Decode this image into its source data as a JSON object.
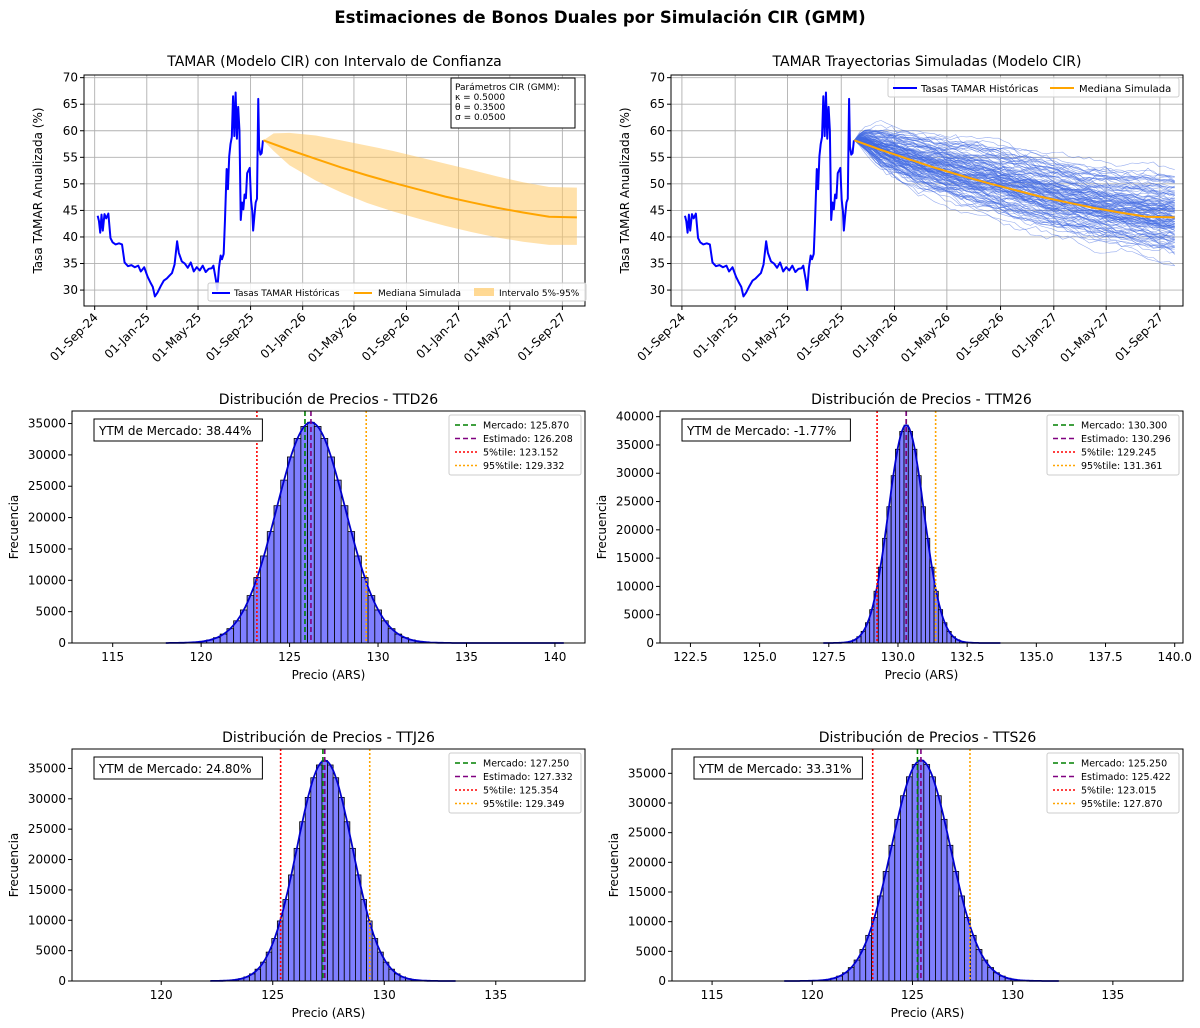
{
  "figure": {
    "suptitle": "Estimaciones de Bonos Duales por Simulación CIR (GMM)"
  },
  "colors": {
    "historical": "#0000ff",
    "median": "#ffa500",
    "band": "#ffc966",
    "paths": "#4169e1",
    "hist_fill": "#7f7fff",
    "mercado": "#008000",
    "estimado": "#800080",
    "p5": "#ff0000",
    "p95": "#ffa500",
    "grid": "#b0b0b0"
  },
  "chart_data": [
    {
      "id": "tamar-ci",
      "type": "line",
      "title": "TAMAR (Modelo CIR) con Intervalo de Confianza",
      "ylabel": "Tasa TAMAR Anualizada (%)",
      "xlabel": "",
      "ylim": [
        27,
        70.5
      ],
      "xlim": [
        "2024-08-07",
        "2027-10-24"
      ],
      "yticks": [
        30,
        35,
        40,
        45,
        50,
        55,
        60,
        65,
        70
      ],
      "xticks": [
        "01-Sep-24",
        "01-Jan-25",
        "01-May-25",
        "01-Sep-25",
        "01-Jan-26",
        "01-May-26",
        "01-Sep-26",
        "01-Jan-27",
        "01-May-27",
        "01-Sep-27"
      ],
      "xtick_dates": [
        "2024-09-01",
        "2025-01-01",
        "2025-05-01",
        "2025-09-01",
        "2026-01-01",
        "2026-05-01",
        "2026-09-01",
        "2027-01-01",
        "2027-05-01",
        "2027-09-01"
      ],
      "grid": true,
      "legend": {
        "position": "lower-right",
        "entries": [
          "Tasas TAMAR Históricas",
          "Mediana Simulada",
          "Intervalo 5%-95%"
        ]
      },
      "annotation": {
        "position": "top-right",
        "lines": [
          "Parámetros CIR (GMM):",
          "κ = 0.5000",
          "θ = 0.3500",
          "σ = 0.0500"
        ]
      },
      "historical": [
        [
          "2024-09-08",
          44
        ],
        [
          "2024-09-11",
          43
        ],
        [
          "2024-09-14",
          40.8
        ],
        [
          "2024-09-17",
          44.2
        ],
        [
          "2024-09-20",
          41.2
        ],
        [
          "2024-09-24",
          44.3
        ],
        [
          "2024-09-28",
          43.5
        ],
        [
          "2024-10-03",
          44.4
        ],
        [
          "2024-10-08",
          39.8
        ],
        [
          "2024-10-13",
          39
        ],
        [
          "2024-10-20",
          38.6
        ],
        [
          "2024-10-28",
          38.8
        ],
        [
          "2024-11-04",
          38.6
        ],
        [
          "2024-11-10",
          35.2
        ],
        [
          "2024-11-18",
          34.5
        ],
        [
          "2024-11-26",
          34.7
        ],
        [
          "2024-12-04",
          34.3
        ],
        [
          "2024-12-12",
          34.6
        ],
        [
          "2024-12-18",
          33.5
        ],
        [
          "2024-12-26",
          34.3
        ],
        [
          "2025-01-03",
          32.5
        ],
        [
          "2025-01-09",
          31.5
        ],
        [
          "2025-01-15",
          30.6
        ],
        [
          "2025-01-20",
          28.8
        ],
        [
          "2025-01-26",
          29.5
        ],
        [
          "2025-02-03",
          30.8
        ],
        [
          "2025-02-10",
          31.8
        ],
        [
          "2025-02-17",
          32.2
        ],
        [
          "2025-02-23",
          32.7
        ],
        [
          "2025-03-01",
          33.2
        ],
        [
          "2025-03-07",
          34.8
        ],
        [
          "2025-03-13",
          39.2
        ],
        [
          "2025-03-17",
          37
        ],
        [
          "2025-03-24",
          35.4
        ],
        [
          "2025-03-31",
          35
        ],
        [
          "2025-04-07",
          34.2
        ],
        [
          "2025-04-14",
          35.2
        ],
        [
          "2025-04-21",
          33.5
        ],
        [
          "2025-04-28",
          34.3
        ],
        [
          "2025-05-05",
          33.7
        ],
        [
          "2025-05-12",
          34.6
        ],
        [
          "2025-05-19",
          33.4
        ],
        [
          "2025-05-26",
          34
        ],
        [
          "2025-06-02",
          34.1
        ],
        [
          "2025-06-06",
          34.6
        ],
        [
          "2025-06-12",
          31.8
        ],
        [
          "2025-06-15",
          30
        ],
        [
          "2025-06-19",
          34.2
        ],
        [
          "2025-06-23",
          36.5
        ],
        [
          "2025-06-26",
          35.8
        ],
        [
          "2025-06-30",
          36.8
        ],
        [
          "2025-07-03",
          43
        ],
        [
          "2025-07-07",
          52.8
        ],
        [
          "2025-07-10",
          49
        ],
        [
          "2025-07-13",
          55.2
        ],
        [
          "2025-07-16",
          57.5
        ],
        [
          "2025-07-19",
          58.8
        ],
        [
          "2025-07-22",
          66.5
        ],
        [
          "2025-07-25",
          59
        ],
        [
          "2025-07-28",
          67.2
        ],
        [
          "2025-07-31",
          58.5
        ],
        [
          "2025-08-03",
          64.5
        ],
        [
          "2025-08-06",
          60
        ],
        [
          "2025-08-09",
          43.2
        ],
        [
          "2025-08-12",
          46.5
        ],
        [
          "2025-08-15",
          45.2
        ],
        [
          "2025-08-18",
          48
        ],
        [
          "2025-08-21",
          47.3
        ],
        [
          "2025-08-24",
          52
        ],
        [
          "2025-08-27",
          52.5
        ],
        [
          "2025-08-30",
          53
        ],
        [
          "2025-09-02",
          47
        ],
        [
          "2025-09-05",
          44.8
        ],
        [
          "2025-09-07",
          41.2
        ],
        [
          "2025-09-10",
          44
        ],
        [
          "2025-09-13",
          46.5
        ],
        [
          "2025-09-16",
          47.2
        ],
        [
          "2025-09-19",
          66
        ],
        [
          "2025-09-21",
          57
        ],
        [
          "2025-09-24",
          55.5
        ],
        [
          "2025-09-27",
          55.8
        ],
        [
          "2025-09-30",
          58.2
        ]
      ],
      "median": [
        [
          "2025-10-01",
          58.2
        ],
        [
          "2025-12-01",
          56.4
        ],
        [
          "2026-02-01",
          54.7
        ],
        [
          "2026-04-01",
          53.1
        ],
        [
          "2026-06-01",
          51.6
        ],
        [
          "2026-08-01",
          50.2
        ],
        [
          "2026-10-01",
          48.9
        ],
        [
          "2026-12-01",
          47.6
        ],
        [
          "2027-02-01",
          46.5
        ],
        [
          "2027-04-01",
          45.5
        ],
        [
          "2027-06-01",
          44.6
        ],
        [
          "2027-08-01",
          43.8
        ],
        [
          "2027-10-05",
          43.7
        ]
      ],
      "band_upper": [
        [
          "2025-10-01",
          58.2
        ],
        [
          "2025-10-25",
          59.5
        ],
        [
          "2025-12-01",
          59.6
        ],
        [
          "2026-02-01",
          59.1
        ],
        [
          "2026-04-01",
          58.2
        ],
        [
          "2026-06-01",
          57.2
        ],
        [
          "2026-08-01",
          56.2
        ],
        [
          "2026-10-01",
          55
        ],
        [
          "2026-12-01",
          53.8
        ],
        [
          "2027-02-01",
          52.6
        ],
        [
          "2027-04-01",
          51.4
        ],
        [
          "2027-06-01",
          50.3
        ],
        [
          "2027-08-01",
          49.4
        ],
        [
          "2027-10-05",
          49.3
        ]
      ],
      "band_lower": [
        [
          "2025-10-01",
          58.2
        ],
        [
          "2025-10-25",
          56.2
        ],
        [
          "2025-12-01",
          53.5
        ],
        [
          "2026-02-01",
          50.6
        ],
        [
          "2026-04-01",
          48.4
        ],
        [
          "2026-06-01",
          46.4
        ],
        [
          "2026-08-01",
          44.8
        ],
        [
          "2026-10-01",
          43.4
        ],
        [
          "2026-12-01",
          42.1
        ],
        [
          "2027-02-01",
          40.9
        ],
        [
          "2027-04-01",
          39.9
        ],
        [
          "2027-06-01",
          39.1
        ],
        [
          "2027-08-01",
          38.5
        ],
        [
          "2027-10-05",
          38.5
        ]
      ]
    },
    {
      "id": "tamar-paths",
      "type": "line",
      "title": "TAMAR Trayectorias Simuladas (Modelo CIR)",
      "ylabel": "Tasa TAMAR Anualizada (%)",
      "xlabel": "",
      "ylim": [
        27,
        70.5
      ],
      "xlim": [
        "2024-08-07",
        "2027-10-24"
      ],
      "yticks": [
        30,
        35,
        40,
        45,
        50,
        55,
        60,
        65,
        70
      ],
      "xticks": [
        "01-Sep-24",
        "01-Jan-25",
        "01-May-25",
        "01-Sep-25",
        "01-Jan-26",
        "01-May-26",
        "01-Sep-26",
        "01-Jan-27",
        "01-May-27",
        "01-Sep-27"
      ],
      "xtick_dates": [
        "2024-09-01",
        "2025-01-01",
        "2025-05-01",
        "2025-09-01",
        "2026-01-01",
        "2026-05-01",
        "2026-09-01",
        "2027-01-01",
        "2027-05-01",
        "2027-09-01"
      ],
      "grid": true,
      "legend": {
        "position": "top-right",
        "entries": [
          "Tasas TAMAR Históricas",
          "Mediana Simulada"
        ]
      },
      "paths_envelope": {
        "upper": [
          [
            "2025-10-01",
            58.2
          ],
          [
            "2025-10-20",
            60.6
          ],
          [
            "2025-12-01",
            61.2
          ],
          [
            "2026-03-01",
            60.5
          ],
          [
            "2026-06-01",
            59.6
          ],
          [
            "2026-09-01",
            58.5
          ],
          [
            "2026-12-01",
            57
          ],
          [
            "2027-03-01",
            55.5
          ],
          [
            "2027-06-01",
            54.2
          ],
          [
            "2027-10-05",
            53.6
          ]
        ],
        "lower": [
          [
            "2025-10-01",
            58.2
          ],
          [
            "2025-12-01",
            52
          ],
          [
            "2026-03-01",
            47.6
          ],
          [
            "2026-06-01",
            44.7
          ],
          [
            "2026-09-01",
            42.2
          ],
          [
            "2026-12-01",
            40
          ],
          [
            "2027-03-01",
            38.2
          ],
          [
            "2027-06-01",
            36.4
          ],
          [
            "2027-10-05",
            34.5
          ]
        ]
      },
      "historical_ref": "tamar-ci",
      "median_ref": "tamar-ci"
    },
    {
      "id": "ttd26",
      "type": "histogram",
      "title": "Distribución de Precios - TTD26",
      "xlabel": "Precio (ARS)",
      "ylabel": "Frecuencia",
      "xlim": [
        112.7,
        141.7
      ],
      "ylim": [
        0,
        37000
      ],
      "xticks": [
        115,
        120,
        125,
        130,
        135,
        140
      ],
      "yticks": [
        0,
        5000,
        10000,
        15000,
        20000,
        25000,
        30000,
        35000
      ],
      "mean": 126.208,
      "sd": 1.95,
      "peak": 35200,
      "range": [
        118,
        140.5
      ],
      "bin_width": 0.38,
      "mercado": 125.87,
      "estimado": 126.208,
      "p5": 123.152,
      "p95": 129.332,
      "ytm_label": "YTM de Mercado: 38.44%",
      "legend": [
        "Mercado: 125.870",
        "Estimado: 126.208",
        "5%tile: 123.152",
        "95%tile: 129.332"
      ]
    },
    {
      "id": "ttm26",
      "type": "histogram",
      "title": "Distribución de Precios - TTM26",
      "xlabel": "Precio (ARS)",
      "ylabel": "Frecuencia",
      "xlim": [
        121.4,
        140.3
      ],
      "ylim": [
        0,
        41000
      ],
      "xticks": [
        122.5,
        125.0,
        127.5,
        130.0,
        132.5,
        135.0,
        137.5,
        140.0
      ],
      "yticks": [
        0,
        5000,
        10000,
        15000,
        20000,
        25000,
        30000,
        35000,
        40000
      ],
      "mean": 130.296,
      "sd": 0.64,
      "peak": 38500,
      "range": [
        127.3,
        133.7
      ],
      "bin_width": 0.155,
      "mercado": 130.3,
      "estimado": 130.296,
      "p5": 129.245,
      "p95": 131.361,
      "ytm_label": "YTM de Mercado: -1.77%",
      "legend": [
        "Mercado: 130.300",
        "Estimado: 130.296",
        "5%tile: 129.245",
        "95%tile: 131.361"
      ]
    },
    {
      "id": "ttj26",
      "type": "histogram",
      "title": "Distribución de Precios - TTJ26",
      "xlabel": "Precio (ARS)",
      "ylabel": "Frecuencia",
      "xlim": [
        116,
        139
      ],
      "ylim": [
        0,
        38200
      ],
      "xticks": [
        120,
        125,
        130,
        135
      ],
      "yticks": [
        0,
        5000,
        10000,
        15000,
        20000,
        25000,
        30000,
        35000
      ],
      "mean": 127.332,
      "sd": 1.24,
      "peak": 36300,
      "range": [
        122.2,
        133.2
      ],
      "bin_width": 0.25,
      "mercado": 127.25,
      "estimado": 127.332,
      "p5": 125.354,
      "p95": 129.349,
      "ytm_label": "YTM de Mercado: 24.80%",
      "legend": [
        "Mercado: 127.250",
        "Estimado: 127.332",
        "5%tile: 125.354",
        "95%tile: 129.349"
      ]
    },
    {
      "id": "tts26",
      "type": "histogram",
      "title": "Distribución de Precios - TTS26",
      "xlabel": "Precio (ARS)",
      "ylabel": "Frecuencia",
      "xlim": [
        113,
        138.5
      ],
      "ylim": [
        0,
        39100
      ],
      "xticks": [
        115,
        120,
        125,
        130,
        135
      ],
      "yticks": [
        0,
        5000,
        10000,
        15000,
        20000,
        25000,
        30000,
        35000
      ],
      "mean": 125.422,
      "sd": 1.47,
      "peak": 37200,
      "range": [
        118.6,
        132.3
      ],
      "bin_width": 0.29,
      "mercado": 125.25,
      "estimado": 125.422,
      "p5": 123.015,
      "p95": 127.87,
      "ytm_label": "YTM de Mercado: 33.31%",
      "legend": [
        "Mercado: 125.250",
        "Estimado: 125.422",
        "5%tile: 123.015",
        "95%tile: 127.870"
      ]
    }
  ]
}
